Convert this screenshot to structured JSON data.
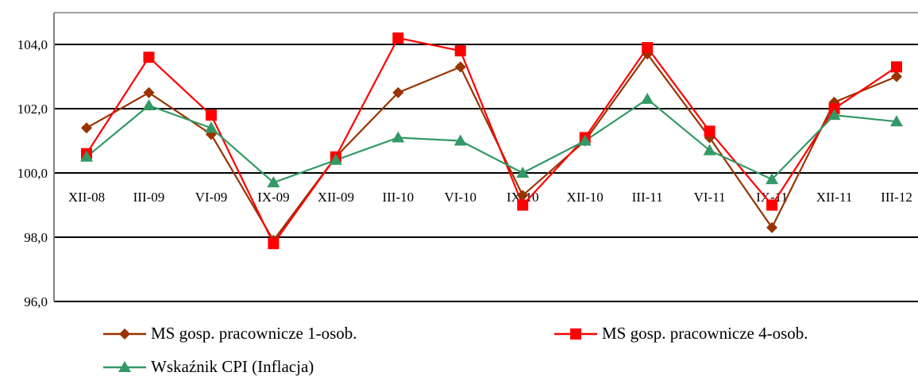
{
  "chart_data": {
    "type": "line",
    "categories": [
      "XII-08",
      "III-09",
      "VI-09",
      "IX-09",
      "XII-09",
      "III-10",
      "VI-10",
      "IX-10",
      "XII-10",
      "III-11",
      "VI-11",
      "IX-11",
      "XII-11",
      "III-12"
    ],
    "ylim": [
      96,
      105
    ],
    "yticks": [
      "96,0",
      "98,0",
      "100,0",
      "102,0",
      "104,0"
    ],
    "ytick_values": [
      96,
      98,
      100,
      102,
      104
    ],
    "x_axis_at": 100,
    "grid": "horizontal",
    "legend_position": "bottom",
    "series": [
      {
        "name": "MS gosp. pracownicze 1-osob.",
        "color": "#993300",
        "marker": "diamond",
        "values": [
          101.4,
          102.5,
          101.2,
          97.9,
          100.5,
          102.5,
          103.3,
          99.3,
          101.0,
          103.7,
          101.1,
          98.3,
          102.2,
          103.0
        ]
      },
      {
        "name": "MS gosp. pracownicze 4-osob.",
        "color": "#ff0000",
        "marker": "square",
        "values": [
          100.6,
          103.6,
          101.8,
          97.8,
          100.5,
          104.2,
          103.8,
          99.0,
          101.1,
          103.9,
          101.3,
          99.0,
          102.0,
          103.3
        ]
      },
      {
        "name": "Wskaźnik CPI (Inflacja)",
        "color": "#339966",
        "marker": "triangle",
        "values": [
          100.5,
          102.1,
          101.4,
          99.7,
          100.4,
          101.1,
          101.0,
          100.0,
          101.0,
          102.3,
          100.7,
          99.8,
          101.8,
          101.6
        ]
      }
    ]
  }
}
